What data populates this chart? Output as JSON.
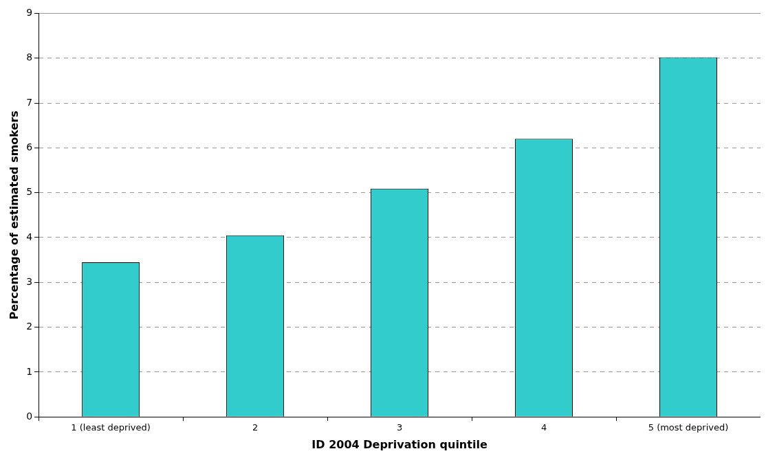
{
  "chart_data": {
    "type": "bar",
    "xlabel": "ID 2004 Deprivation quintile",
    "ylabel": "Percentage of estimated smokers",
    "categories": [
      "1 (least deprived)",
      "2",
      "3",
      "4",
      "5 (most deprived)"
    ],
    "values": [
      3.45,
      4.05,
      5.09,
      6.2,
      8.02
    ],
    "color": "#33cccc",
    "ylim": [
      0,
      9
    ],
    "yticks": [
      0,
      1,
      2,
      3,
      4,
      5,
      6,
      7,
      8,
      9
    ],
    "grid": "y",
    "legend": false
  }
}
